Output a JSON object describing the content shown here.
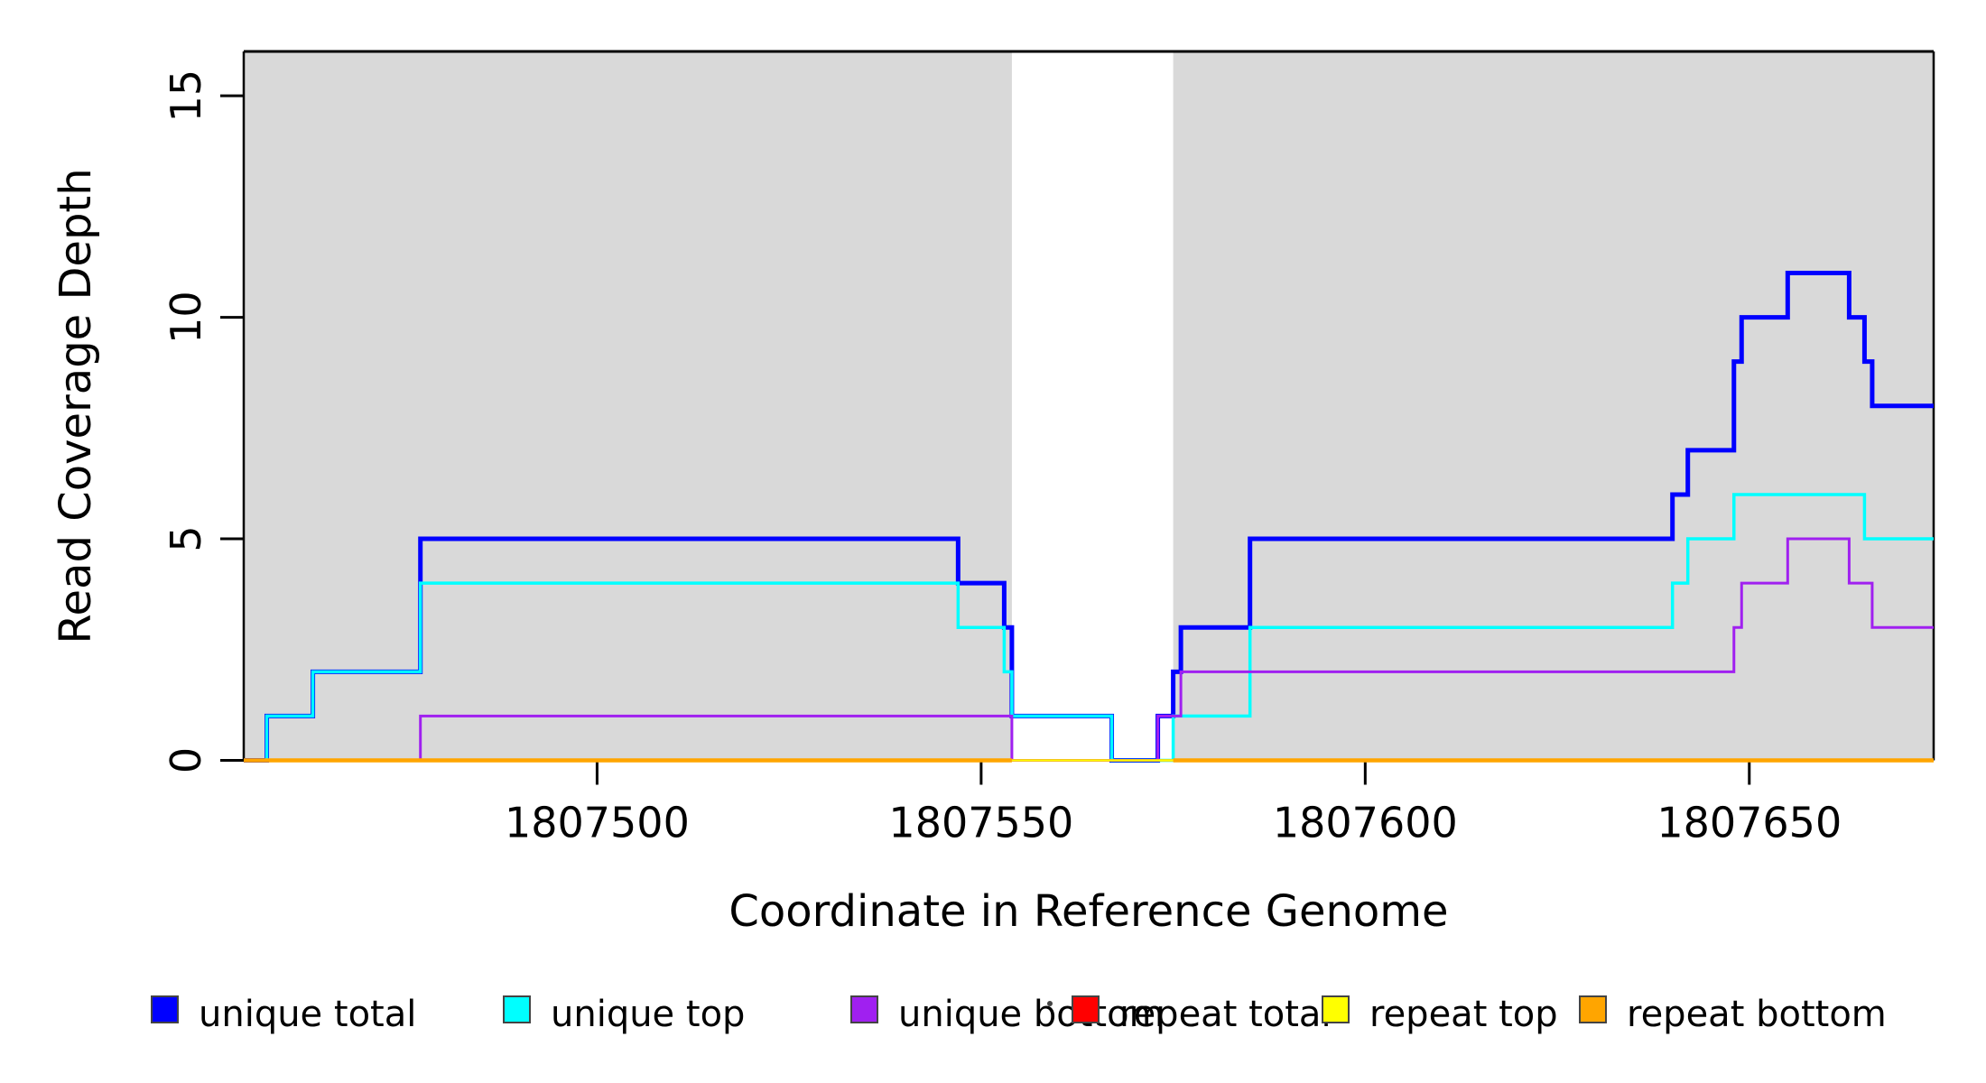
{
  "chart_data": {
    "type": "line",
    "subtype": "step-coverage-plot",
    "title": "",
    "xlabel": "Coordinate in Reference Genome",
    "ylabel": "Read Coverage Depth",
    "xlim": [
      1807454,
      1807674
    ],
    "ylim": [
      0,
      16
    ],
    "grid": false,
    "x_ticks": [
      1807500,
      1807550,
      1807600,
      1807650
    ],
    "y_ticks": [
      0,
      5,
      10,
      15
    ],
    "shaded_region_color": "#d9d9d9",
    "shaded_regions": [
      {
        "x0": 1807454,
        "x1": 1807554
      },
      {
        "x0": 1807575,
        "x1": 1807674
      }
    ],
    "series": [
      {
        "name": "unique total",
        "color": "#0000ff",
        "lwd": 5,
        "steps": [
          [
            1807454,
            0
          ],
          [
            1807457,
            1
          ],
          [
            1807463,
            2
          ],
          [
            1807477,
            5
          ],
          [
            1807547,
            4
          ],
          [
            1807553,
            3
          ],
          [
            1807554,
            1
          ],
          [
            1807567,
            0
          ],
          [
            1807573,
            1
          ],
          [
            1807575,
            2
          ],
          [
            1807576,
            3
          ],
          [
            1807585,
            5
          ],
          [
            1807640,
            6
          ],
          [
            1807642,
            7
          ],
          [
            1807648,
            9
          ],
          [
            1807649,
            10
          ],
          [
            1807655,
            11
          ],
          [
            1807663,
            10
          ],
          [
            1807665,
            9
          ],
          [
            1807666,
            8
          ]
        ],
        "end": 1807674
      },
      {
        "name": "unique top",
        "color": "#00ffff",
        "lwd": 3.5,
        "steps": [
          [
            1807454,
            0
          ],
          [
            1807457,
            1
          ],
          [
            1807463,
            2
          ],
          [
            1807477,
            4
          ],
          [
            1807547,
            3
          ],
          [
            1807553,
            2
          ],
          [
            1807554,
            1
          ],
          [
            1807567,
            0
          ],
          [
            1807575,
            1
          ],
          [
            1807585,
            3
          ],
          [
            1807640,
            4
          ],
          [
            1807642,
            5
          ],
          [
            1807648,
            6
          ],
          [
            1807665,
            5
          ]
        ],
        "end": 1807674
      },
      {
        "name": "unique bottom",
        "color": "#a020f0",
        "lwd": 3,
        "steps": [
          [
            1807454,
            0
          ],
          [
            1807477,
            1
          ],
          [
            1807554,
            0
          ],
          [
            1807573,
            1
          ],
          [
            1807576,
            2
          ],
          [
            1807648,
            3
          ],
          [
            1807649,
            4
          ],
          [
            1807655,
            5
          ],
          [
            1807663,
            4
          ],
          [
            1807666,
            3
          ]
        ],
        "end": 1807674
      },
      {
        "name": "repeat total",
        "color": "#ff0000",
        "lwd": 2.5,
        "steps": [
          [
            1807454,
            0
          ]
        ],
        "end": 1807674
      },
      {
        "name": "repeat top",
        "color": "#ffff00",
        "lwd": 2.5,
        "steps": [
          [
            1807454,
            0
          ]
        ],
        "end": 1807674
      },
      {
        "name": "repeat bottom",
        "color": "#ffa500",
        "lwd": 4.5,
        "segments": [
          {
            "steps": [
              [
                1807454,
                0
              ]
            ],
            "end": 1807554
          },
          {
            "steps": [
              [
                1807575,
                0
              ]
            ],
            "end": 1807674
          }
        ]
      }
    ],
    "legend": {
      "position": "bottom",
      "entries": [
        {
          "label": "unique total",
          "color": "#0000ff"
        },
        {
          "label": "unique top",
          "color": "#00ffff"
        },
        {
          "label": "unique bottom",
          "color": "#a020f0"
        },
        {
          "label": "repeat total",
          "color": "#ff0000"
        },
        {
          "label": "repeat top",
          "color": "#ffff00"
        },
        {
          "label": "repeat bottom",
          "color": "#ffa500"
        }
      ]
    }
  }
}
